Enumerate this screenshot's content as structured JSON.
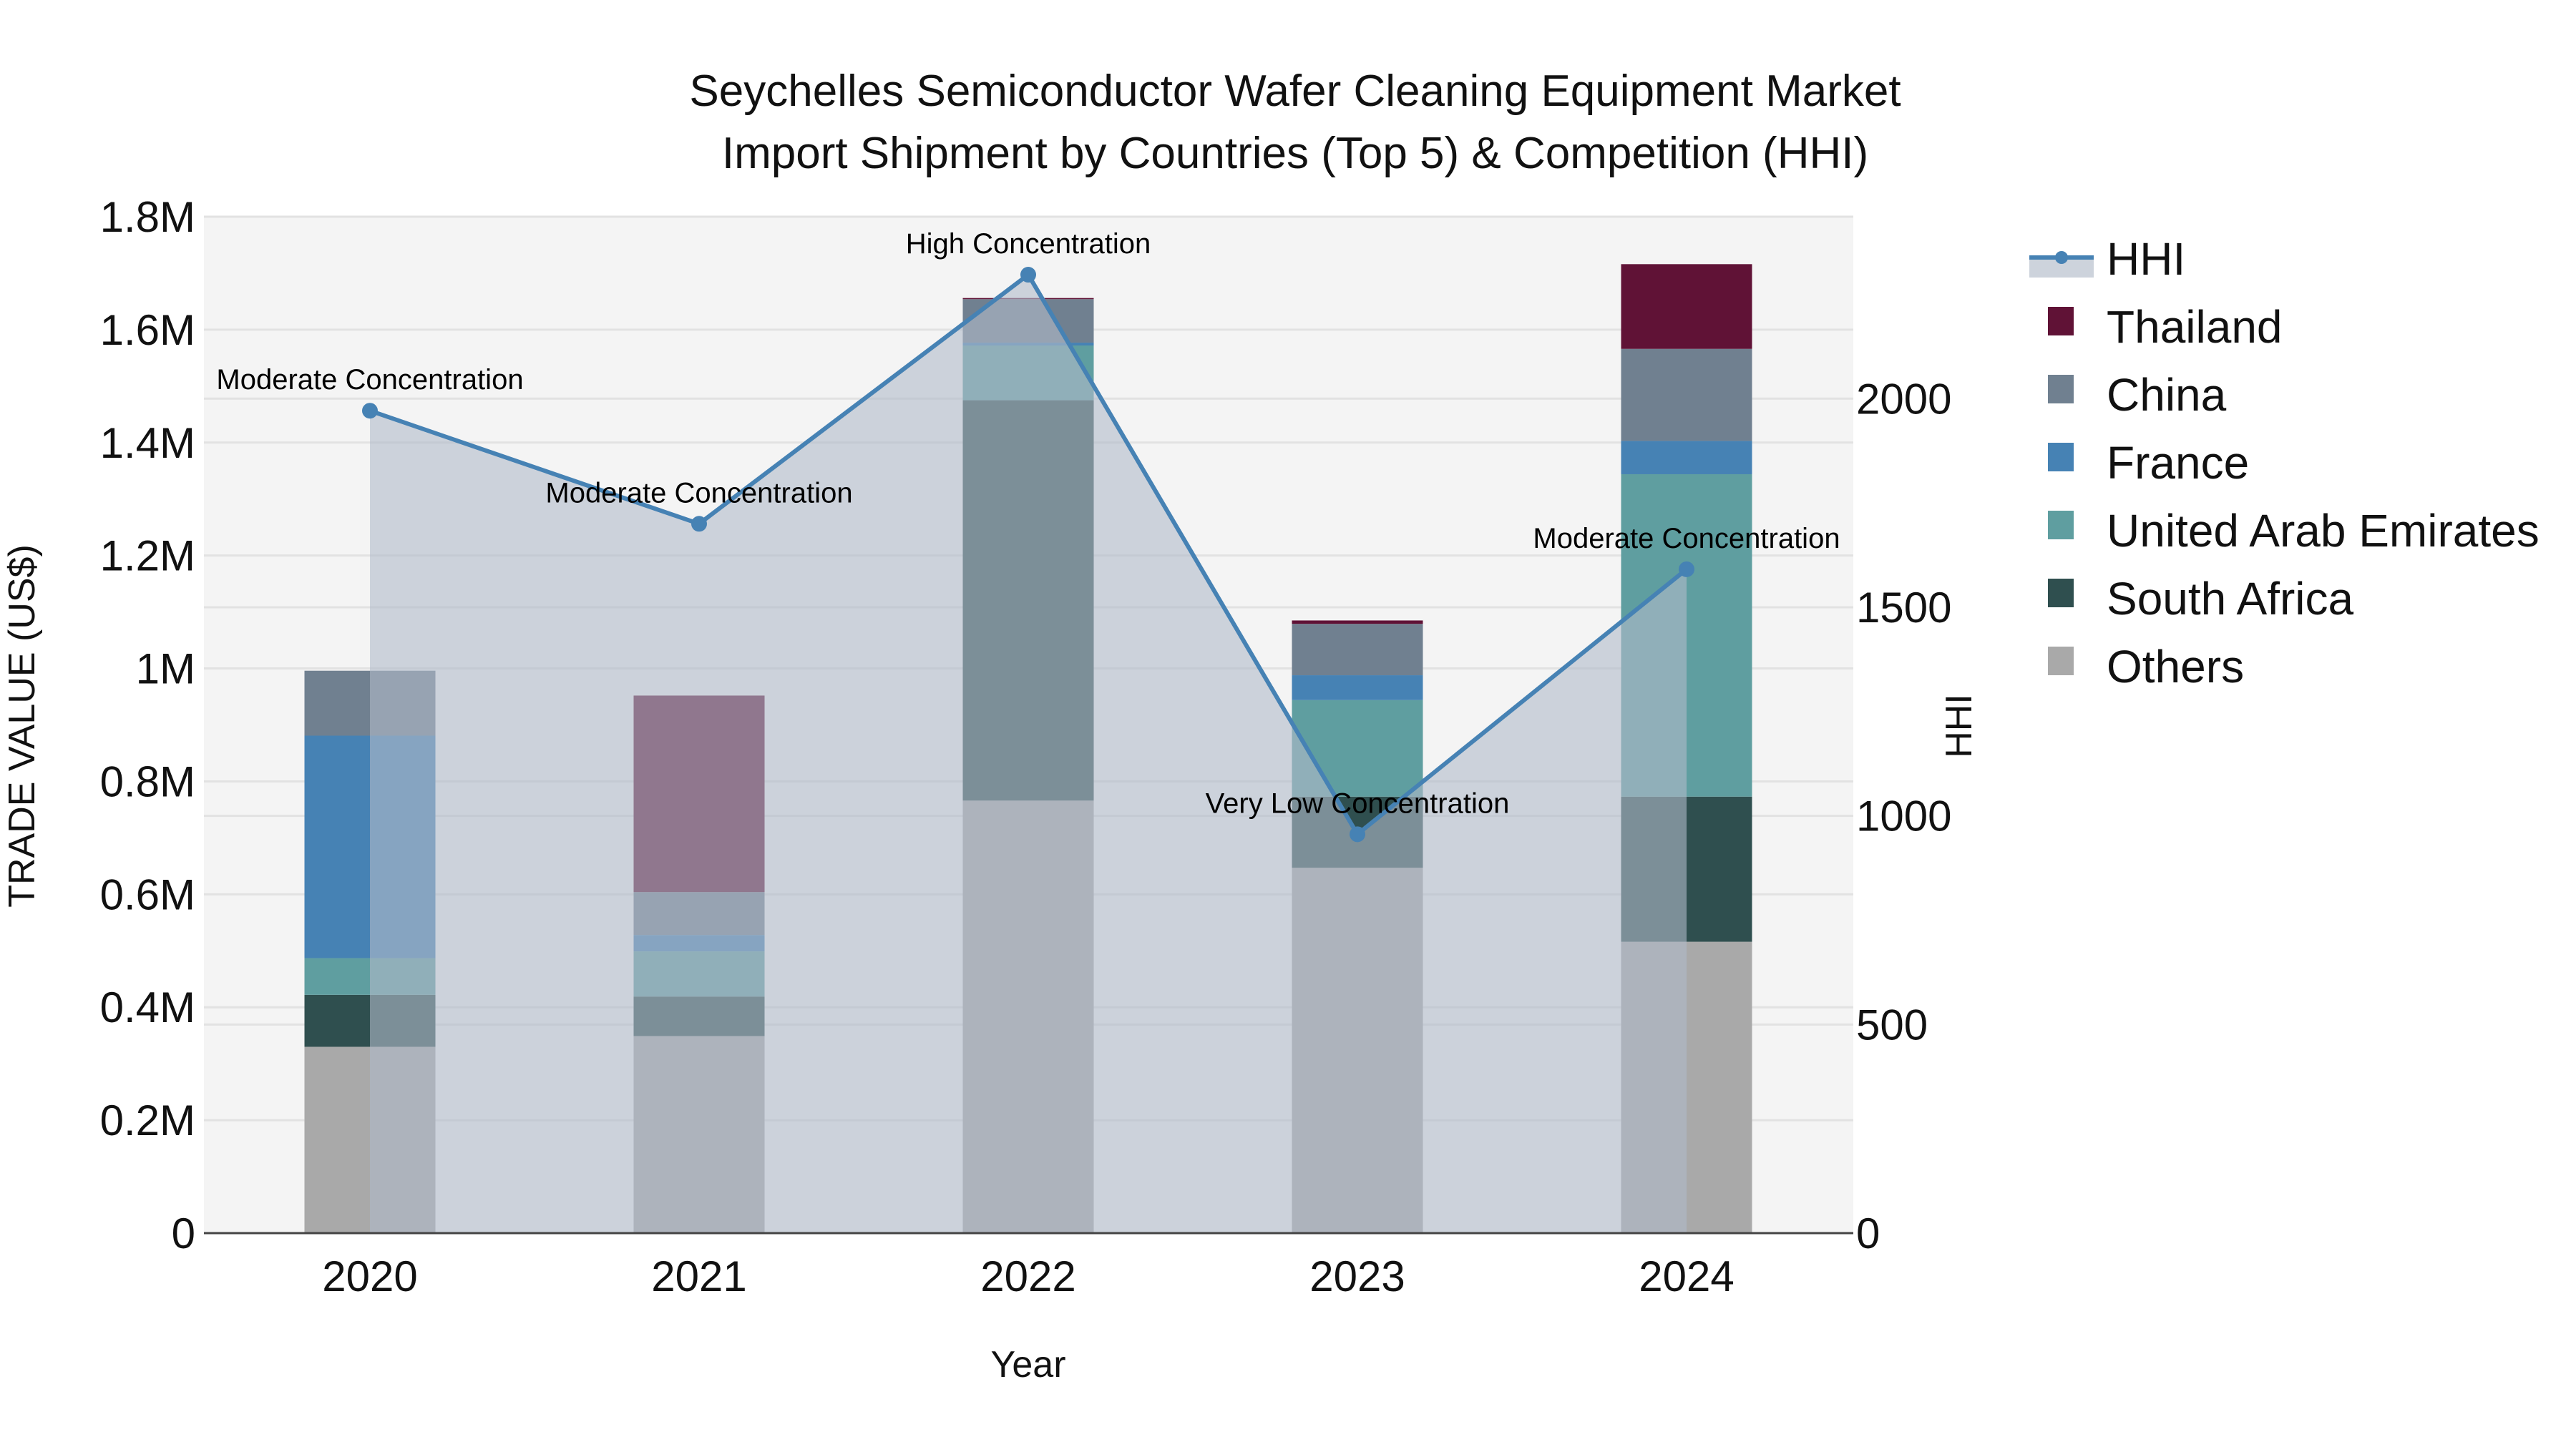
{
  "chart_data": {
    "type": "bar",
    "subtype": "stacked bar with line overlay (secondary axis)",
    "title": "Seychelles Semiconductor Wafer Cleaning Equipment Market",
    "subtitle": "Import Shipment by Countries (Top 5) & Competition (HHI)",
    "xlabel": "Year",
    "ylabel": "TRADE VALUE (US$)",
    "y2label": "HHI",
    "categories": [
      "2020",
      "2021",
      "2022",
      "2023",
      "2024"
    ],
    "ylim": [
      0,
      1800000
    ],
    "y2lim": [
      0,
      2437
    ],
    "yticks": [
      0,
      200000,
      400000,
      600000,
      800000,
      1000000,
      1200000,
      1400000,
      1600000,
      1800000
    ],
    "ytick_labels": [
      "0",
      "0.2M",
      "0.4M",
      "0.6M",
      "0.8M",
      "1M",
      "1.2M",
      "1.4M",
      "1.6M",
      "1.8M"
    ],
    "y2ticks": [
      0,
      500,
      1000,
      1500,
      2000
    ],
    "y2tick_labels": [
      "0",
      "500",
      "1000",
      "1500",
      "2000"
    ],
    "grid": true,
    "legend_position": "right",
    "series": [
      {
        "name": "Others",
        "color": "#A9A9A9",
        "values": [
          330000,
          349000,
          766000,
          647000,
          516000
        ]
      },
      {
        "name": "South Africa",
        "color": "#2F4F4F",
        "values": [
          92000,
          70000,
          709000,
          126000,
          257000
        ]
      },
      {
        "name": "United Arab Emirates",
        "color": "#5F9EA0",
        "values": [
          65000,
          80000,
          97000,
          171000,
          571000
        ]
      },
      {
        "name": "France",
        "color": "#4682B4",
        "values": [
          394000,
          29000,
          5000,
          44000,
          59000
        ]
      },
      {
        "name": "China",
        "color": "#708090",
        "values": [
          115000,
          76000,
          77000,
          91000,
          163000
        ]
      },
      {
        "name": "Thailand",
        "color": "#601236",
        "values": [
          0,
          348000,
          2000,
          6000,
          150000
        ]
      }
    ],
    "line_series": {
      "name": "HHI",
      "axis": "y2",
      "color": "#4682B4",
      "fill_color": "rgba(176,186,202,0.6)",
      "values": [
        1971,
        1700,
        2297,
        956,
        1591
      ],
      "annotations": [
        "Moderate Concentration",
        "Moderate Concentration",
        "High Concentration",
        "Very Low Concentration",
        "Moderate Concentration"
      ]
    }
  },
  "legend": {
    "items": [
      {
        "label": "HHI",
        "type": "line",
        "color": "#4682B4"
      },
      {
        "label": "Thailand",
        "type": "box",
        "color": "#601236"
      },
      {
        "label": "China",
        "type": "box",
        "color": "#708090"
      },
      {
        "label": "France",
        "type": "box",
        "color": "#4682B4"
      },
      {
        "label": "United Arab Emirates",
        "type": "box",
        "color": "#5F9EA0"
      },
      {
        "label": "South Africa",
        "type": "box",
        "color": "#2F4F4F"
      },
      {
        "label": "Others",
        "type": "box",
        "color": "#A9A9A9"
      }
    ]
  },
  "colors": {
    "plot_bg": "#F4F4F4",
    "grid": "#E2E2E2",
    "axis_line": "#444444"
  }
}
